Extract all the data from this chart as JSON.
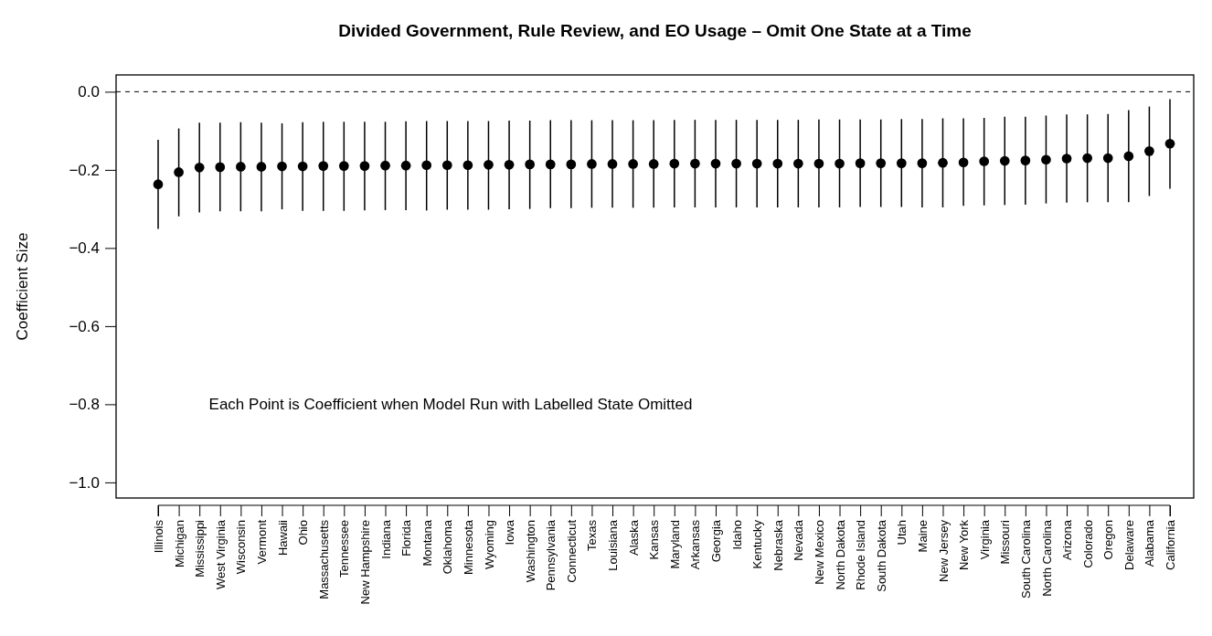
{
  "chart_data": {
    "type": "scatter",
    "title": "Divided Government, Rule Review, and EO Usage – Omit One State at a Time",
    "ylabel": "Coefficient Size",
    "categories": [
      "Illinois",
      "Michigan",
      "Mississippi",
      "West Virginia",
      "Wisconsin",
      "Vermont",
      "Hawaii",
      "Ohio",
      "Massachusetts",
      "Tennessee",
      "New Hampshire",
      "Indiana",
      "Florida",
      "Montana",
      "Oklahoma",
      "Minnesota",
      "Wyoming",
      "Iowa",
      "Washington",
      "Pennsylvania",
      "Connecticut",
      "Texas",
      "Louisiana",
      "Alaska",
      "Kansas",
      "Maryland",
      "Arkansas",
      "Georgia",
      "Idaho",
      "Kentucky",
      "Nebraska",
      "Nevada",
      "New Mexico",
      "North Dakota",
      "Rhode Island",
      "South Dakota",
      "Utah",
      "Maine",
      "New Jersey",
      "New York",
      "Virginia",
      "Missouri",
      "South Carolina",
      "North Carolina",
      "Arizona",
      "Colorado",
      "Oregon",
      "Delaware",
      "Alabama",
      "California"
    ],
    "values": [
      -0.237,
      -0.206,
      -0.194,
      -0.193,
      -0.192,
      -0.192,
      -0.191,
      -0.191,
      -0.19,
      -0.19,
      -0.19,
      -0.189,
      -0.189,
      -0.188,
      -0.188,
      -0.188,
      -0.187,
      -0.187,
      -0.186,
      -0.186,
      -0.186,
      -0.185,
      -0.185,
      -0.185,
      -0.185,
      -0.184,
      -0.184,
      -0.184,
      -0.184,
      -0.184,
      -0.184,
      -0.184,
      -0.184,
      -0.184,
      -0.183,
      -0.183,
      -0.183,
      -0.183,
      -0.182,
      -0.181,
      -0.178,
      -0.177,
      -0.176,
      -0.174,
      -0.171,
      -0.17,
      -0.17,
      -0.165,
      -0.152,
      -0.133
    ],
    "errors": [
      [
        -0.351,
        -0.123
      ],
      [
        -0.319,
        -0.094
      ],
      [
        -0.309,
        -0.079
      ],
      [
        -0.306,
        -0.079
      ],
      [
        -0.306,
        -0.078
      ],
      [
        -0.306,
        -0.079
      ],
      [
        -0.301,
        -0.081
      ],
      [
        -0.305,
        -0.078
      ],
      [
        -0.305,
        -0.077
      ],
      [
        -0.305,
        -0.077
      ],
      [
        -0.304,
        -0.077
      ],
      [
        -0.303,
        -0.077
      ],
      [
        -0.303,
        -0.076
      ],
      [
        -0.304,
        -0.075
      ],
      [
        -0.302,
        -0.075
      ],
      [
        -0.302,
        -0.075
      ],
      [
        -0.302,
        -0.075
      ],
      [
        -0.301,
        -0.074
      ],
      [
        -0.3,
        -0.074
      ],
      [
        -0.298,
        -0.073
      ],
      [
        -0.298,
        -0.073
      ],
      [
        -0.297,
        -0.073
      ],
      [
        -0.297,
        -0.073
      ],
      [
        -0.297,
        -0.073
      ],
      [
        -0.297,
        -0.073
      ],
      [
        -0.296,
        -0.072
      ],
      [
        -0.296,
        -0.072
      ],
      [
        -0.296,
        -0.072
      ],
      [
        -0.296,
        -0.072
      ],
      [
        -0.296,
        -0.072
      ],
      [
        -0.296,
        -0.072
      ],
      [
        -0.296,
        -0.072
      ],
      [
        -0.296,
        -0.071
      ],
      [
        -0.296,
        -0.071
      ],
      [
        -0.295,
        -0.071
      ],
      [
        -0.295,
        -0.071
      ],
      [
        -0.295,
        -0.07
      ],
      [
        -0.296,
        -0.07
      ],
      [
        -0.296,
        -0.068
      ],
      [
        -0.292,
        -0.068
      ],
      [
        -0.291,
        -0.067
      ],
      [
        -0.29,
        -0.064
      ],
      [
        -0.289,
        -0.064
      ],
      [
        -0.286,
        -0.061
      ],
      [
        -0.284,
        -0.058
      ],
      [
        -0.283,
        -0.058
      ],
      [
        -0.283,
        -0.057
      ],
      [
        -0.283,
        -0.047
      ],
      [
        -0.267,
        -0.038
      ],
      [
        -0.248,
        -0.019
      ]
    ],
    "color": "#000000",
    "marker": "circle",
    "ylim": [
      -1.04,
      0.043
    ],
    "yticks": [
      {
        "value": 0,
        "label": "0.0"
      },
      {
        "value": -0.2,
        "label": "−0.2"
      },
      {
        "value": -0.4,
        "label": "−0.4"
      },
      {
        "value": -0.6,
        "label": "−0.6"
      },
      {
        "value": -0.8,
        "label": "−0.8"
      },
      {
        "value": -1,
        "label": "−1.0"
      }
    ],
    "ref_lines": [
      {
        "axis": "y",
        "value": 0,
        "label": null,
        "line_style": "dashed",
        "color": "#000000"
      }
    ],
    "annotations": [
      "Each Point is Coefficient when Model Run with Labelled State Omitted"
    ],
    "grid": false
  }
}
